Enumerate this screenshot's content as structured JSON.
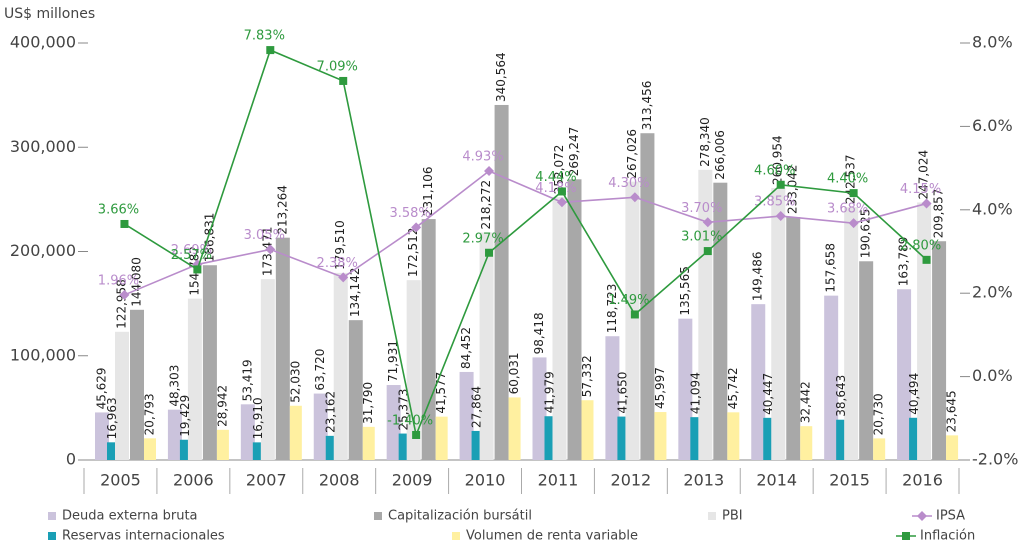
{
  "chart_data": {
    "type": "bar",
    "y_label": "US$ millones",
    "categories": [
      "2005",
      "2006",
      "2007",
      "2008",
      "2009",
      "2010",
      "2011",
      "2012",
      "2013",
      "2014",
      "2015",
      "2016"
    ],
    "ylim": [
      0,
      400000
    ],
    "yticks": [
      0,
      {
        "value": 100000,
        "label": "100,000"
      },
      {
        "value": 200000,
        "label": "200,000"
      },
      {
        "value": 300000,
        "label": "300,000"
      },
      {
        "value": 400000,
        "label": "400,000"
      }
    ],
    "y2lim": [
      -2,
      8
    ],
    "y2ticks": [
      {
        "value": -2,
        "label": "-2.0%"
      },
      {
        "value": 0,
        "label": "0.0%"
      },
      {
        "value": 2,
        "label": "2.0%"
      },
      {
        "value": 4,
        "label": "4.0%"
      },
      {
        "value": 6,
        "label": "6.0%"
      },
      {
        "value": 8,
        "label": "8.0%"
      }
    ],
    "series": [
      {
        "name": "Deuda externa bruta",
        "type": "bar",
        "color": "#cbc3dc",
        "values": [
          45629,
          48303,
          53419,
          63720,
          71931,
          84452,
          98418,
          118723,
          135565,
          149486,
          157658,
          163789
        ],
        "value_labels": [
          "45,629",
          "48,303",
          "53,419",
          "63,720",
          "71,931",
          "84,452",
          "98,418",
          "118,723",
          "135,565",
          "149,486",
          "157,658",
          "163,789"
        ]
      },
      {
        "name": "Reservas internacionales",
        "type": "bar",
        "color": "#1a9fb5",
        "values": [
          16963,
          19429,
          16910,
          23162,
          25373,
          27864,
          41979,
          41650,
          41094,
          40447,
          38643,
          40494
        ],
        "value_labels": [
          "16,963",
          "19,429",
          "16,910",
          "23,162",
          "25,373",
          "27,864",
          "41,979",
          "41,650",
          "41,094",
          "40,447",
          "38,643",
          "40,494"
        ]
      },
      {
        "name": "PBI",
        "type": "bar",
        "color": "#e6e6e6",
        "values": [
          122958,
          154782,
          173471,
          179510,
          172512,
          218272,
          252072,
          267026,
          278340,
          260954,
          242537,
          247024
        ],
        "value_labels": [
          "122,958",
          "154,782",
          "173,471",
          "179,510",
          "172,512",
          "218,272",
          "252,072",
          "267,026",
          "278,340",
          "260,954",
          "242,537",
          "247,024"
        ]
      },
      {
        "name": "Capitalización bursátil",
        "type": "bar",
        "color": "#a8a8a8",
        "values": [
          144080,
          186831,
          213264,
          134142,
          231106,
          340564,
          269247,
          313456,
          266006,
          233042,
          190625,
          209857
        ],
        "value_labels": [
          "144,080",
          "186,831",
          "213,264",
          "134,142",
          "231,106",
          "340,564",
          "269,247",
          "313,456",
          "266,006",
          "233,042",
          "190,625",
          "209,857"
        ]
      },
      {
        "name": "Volumen de renta variable",
        "type": "bar",
        "color": "#fff0a0",
        "values": [
          20793,
          28942,
          52030,
          31790,
          41577,
          60031,
          57332,
          45997,
          45742,
          32442,
          20730,
          23645
        ],
        "value_labels": [
          "20,793",
          "28,942",
          "52,030",
          "31,790",
          "41,577",
          "60,031",
          "57,332",
          "45,997",
          "45,742",
          "32,442",
          "20,730",
          "23,645"
        ]
      },
      {
        "name": "IPSA",
        "type": "line",
        "axis": "y2",
        "color": "#b98ccb",
        "marker": "diamond",
        "values": [
          1.96,
          2.69,
          3.05,
          2.38,
          3.58,
          4.93,
          4.18,
          4.3,
          3.7,
          3.85,
          3.68,
          4.15
        ],
        "value_labels": [
          "1.96%",
          "2.69%",
          "3.05%",
          "2.38%",
          "3.58%",
          "4.93%",
          "4.18%",
          "4.30%",
          "3.70%",
          "3.85%",
          "3.68%",
          "4.15%"
        ]
      },
      {
        "name": "Inflación",
        "type": "line",
        "axis": "y2",
        "color": "#2e9a3e",
        "marker": "square",
        "values": [
          3.66,
          2.57,
          7.83,
          7.09,
          -1.4,
          2.97,
          4.44,
          1.49,
          3.01,
          4.6,
          4.4,
          2.8
        ],
        "value_labels": [
          "3.66%",
          "2.57%",
          "7.83%",
          "7.09%",
          "-1.40%",
          "2.97%",
          "4.44%",
          "1.49%",
          "3.01%",
          "4.60%",
          "4.40%",
          "2.80%"
        ]
      }
    ]
  }
}
